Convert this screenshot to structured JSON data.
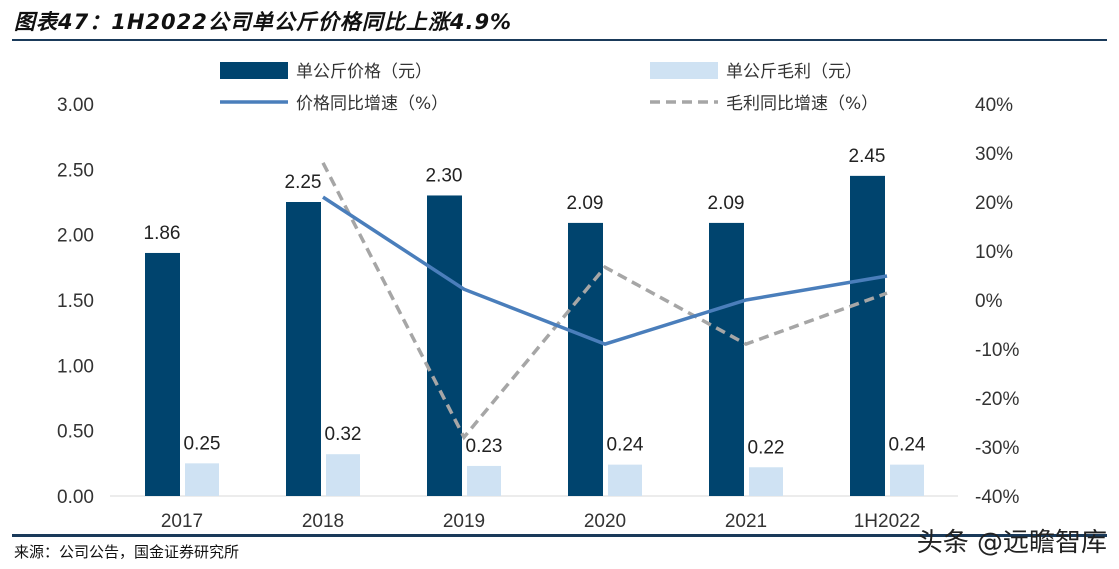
{
  "title": "图表47：1H2022公司单公斤价格同比上涨4.9%",
  "source": "来源：公司公告，国金证券研究所",
  "watermark": "头条 @远瞻智库",
  "chart_data": {
    "type": "bar+line",
    "categories": [
      "2017",
      "2018",
      "2019",
      "2020",
      "2021",
      "1H2022"
    ],
    "left_axis": {
      "range": [
        0,
        3
      ],
      "ticks": [
        "0.00",
        "0.50",
        "1.00",
        "1.50",
        "2.00",
        "2.50",
        "3.00"
      ]
    },
    "right_axis": {
      "range": [
        -40,
        40
      ],
      "ticks": [
        "-40%",
        "-30%",
        "-20%",
        "-10%",
        "0%",
        "10%",
        "20%",
        "30%",
        "40%"
      ]
    },
    "series": [
      {
        "name": "单公斤价格（元）",
        "type": "bar",
        "axis": "left",
        "color": "#00446e",
        "values": [
          1.86,
          2.25,
          2.3,
          2.09,
          2.09,
          2.45
        ],
        "labels": [
          "1.86",
          "2.25",
          "2.30",
          "2.09",
          "2.09",
          "2.45"
        ]
      },
      {
        "name": "单公斤毛利（元）",
        "type": "bar",
        "axis": "left",
        "color": "#cfe2f3",
        "values": [
          0.25,
          0.32,
          0.23,
          0.24,
          0.22,
          0.24
        ],
        "labels": [
          "0.25",
          "0.32",
          "0.23",
          "0.24",
          "0.22",
          "0.24"
        ]
      },
      {
        "name": "价格同比增速（%）",
        "type": "line",
        "axis": "right",
        "color": "#4a7ebb",
        "dashed": false,
        "values": [
          null,
          21,
          2.2,
          -9,
          0,
          4.9
        ]
      },
      {
        "name": "毛利同比增速（%）",
        "type": "line",
        "axis": "right",
        "color": "#a6a6a6",
        "dashed": true,
        "values": [
          null,
          28,
          -28,
          6.7,
          -9,
          1.4
        ]
      }
    ],
    "legend": "top",
    "grid": false
  }
}
